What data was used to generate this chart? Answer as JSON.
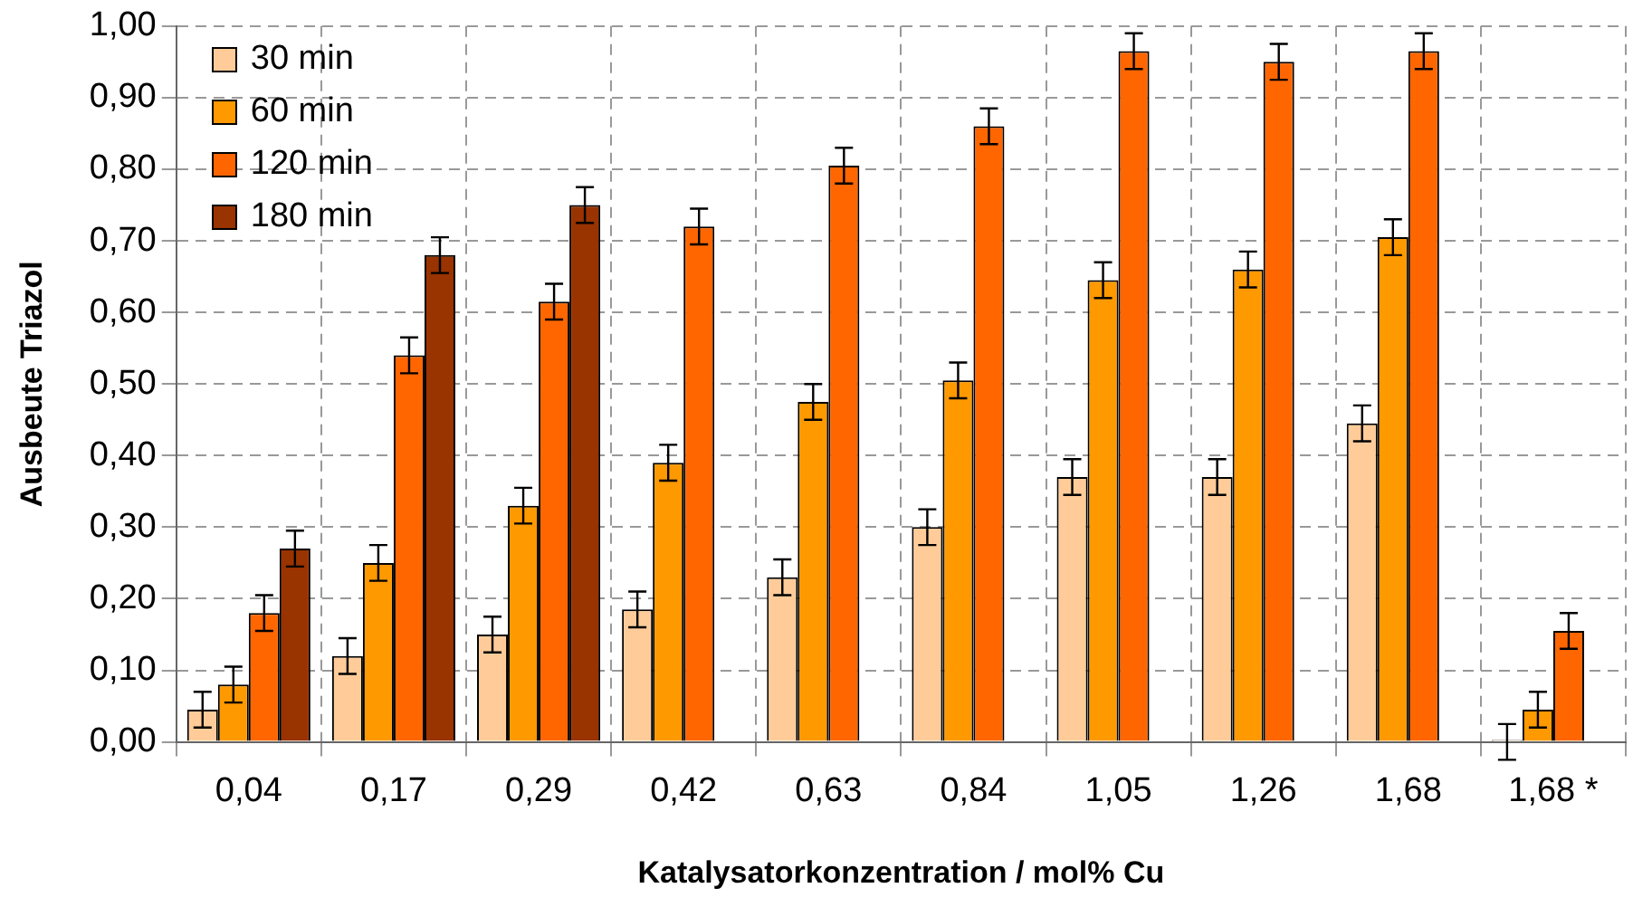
{
  "chart_data": {
    "type": "bar",
    "xlabel": "Katalysatorkonzentration / mol% Cu",
    "ylabel": "Ausbeute Triazol",
    "categories": [
      "0,04",
      "0,17",
      "0,29",
      "0,42",
      "0,63",
      "0,84",
      "1,05",
      "1,26",
      "1,68",
      "1,68 *"
    ],
    "series": [
      {
        "name": "30 min",
        "color": "#ffcc99",
        "values": [
          0.045,
          0.12,
          0.15,
          0.185,
          0.23,
          0.3,
          0.37,
          0.37,
          0.445,
          0
        ],
        "errors": [
          0.025,
          0.025,
          0.025,
          0.025,
          0.025,
          0.025,
          0.025,
          0.025,
          0.025,
          0.025
        ]
      },
      {
        "name": "60 min",
        "color": "#ff9900",
        "values": [
          0.08,
          0.25,
          0.33,
          0.39,
          0.475,
          0.505,
          0.645,
          0.66,
          0.705,
          0.045
        ],
        "errors": [
          0.025,
          0.025,
          0.025,
          0.025,
          0.025,
          0.025,
          0.025,
          0.025,
          0.025,
          0.025
        ]
      },
      {
        "name": "120 min",
        "color": "#ff6600",
        "values": [
          0.18,
          0.54,
          0.615,
          0.72,
          0.805,
          0.86,
          0.965,
          0.95,
          0.965,
          0.155
        ],
        "errors": [
          0.025,
          0.025,
          0.025,
          0.025,
          0.025,
          0.025,
          0.025,
          0.025,
          0.025,
          0.025
        ]
      },
      {
        "name": "180 min",
        "color": "#993300",
        "values": [
          0.27,
          0.68,
          0.75,
          null,
          null,
          null,
          null,
          null,
          null,
          null
        ],
        "errors": [
          0.025,
          0.025,
          0.025,
          null,
          null,
          null,
          null,
          null,
          null,
          null
        ]
      }
    ],
    "ylim": [
      0,
      1
    ],
    "yticks": [
      {
        "value": 0,
        "label": "0,00"
      },
      {
        "value": 0.1,
        "label": "0,10"
      },
      {
        "value": 0.2,
        "label": "0,20"
      },
      {
        "value": 0.3,
        "label": "0,30"
      },
      {
        "value": 0.4,
        "label": "0,40"
      },
      {
        "value": 0.5,
        "label": "0,50"
      },
      {
        "value": 0.6,
        "label": "0,60"
      },
      {
        "value": 0.7,
        "label": "0,70"
      },
      {
        "value": 0.8,
        "label": "0,80"
      },
      {
        "value": 0.9,
        "label": "0,90"
      },
      {
        "value": 1,
        "label": "1,00"
      }
    ],
    "grid": true,
    "legend": "top left"
  }
}
